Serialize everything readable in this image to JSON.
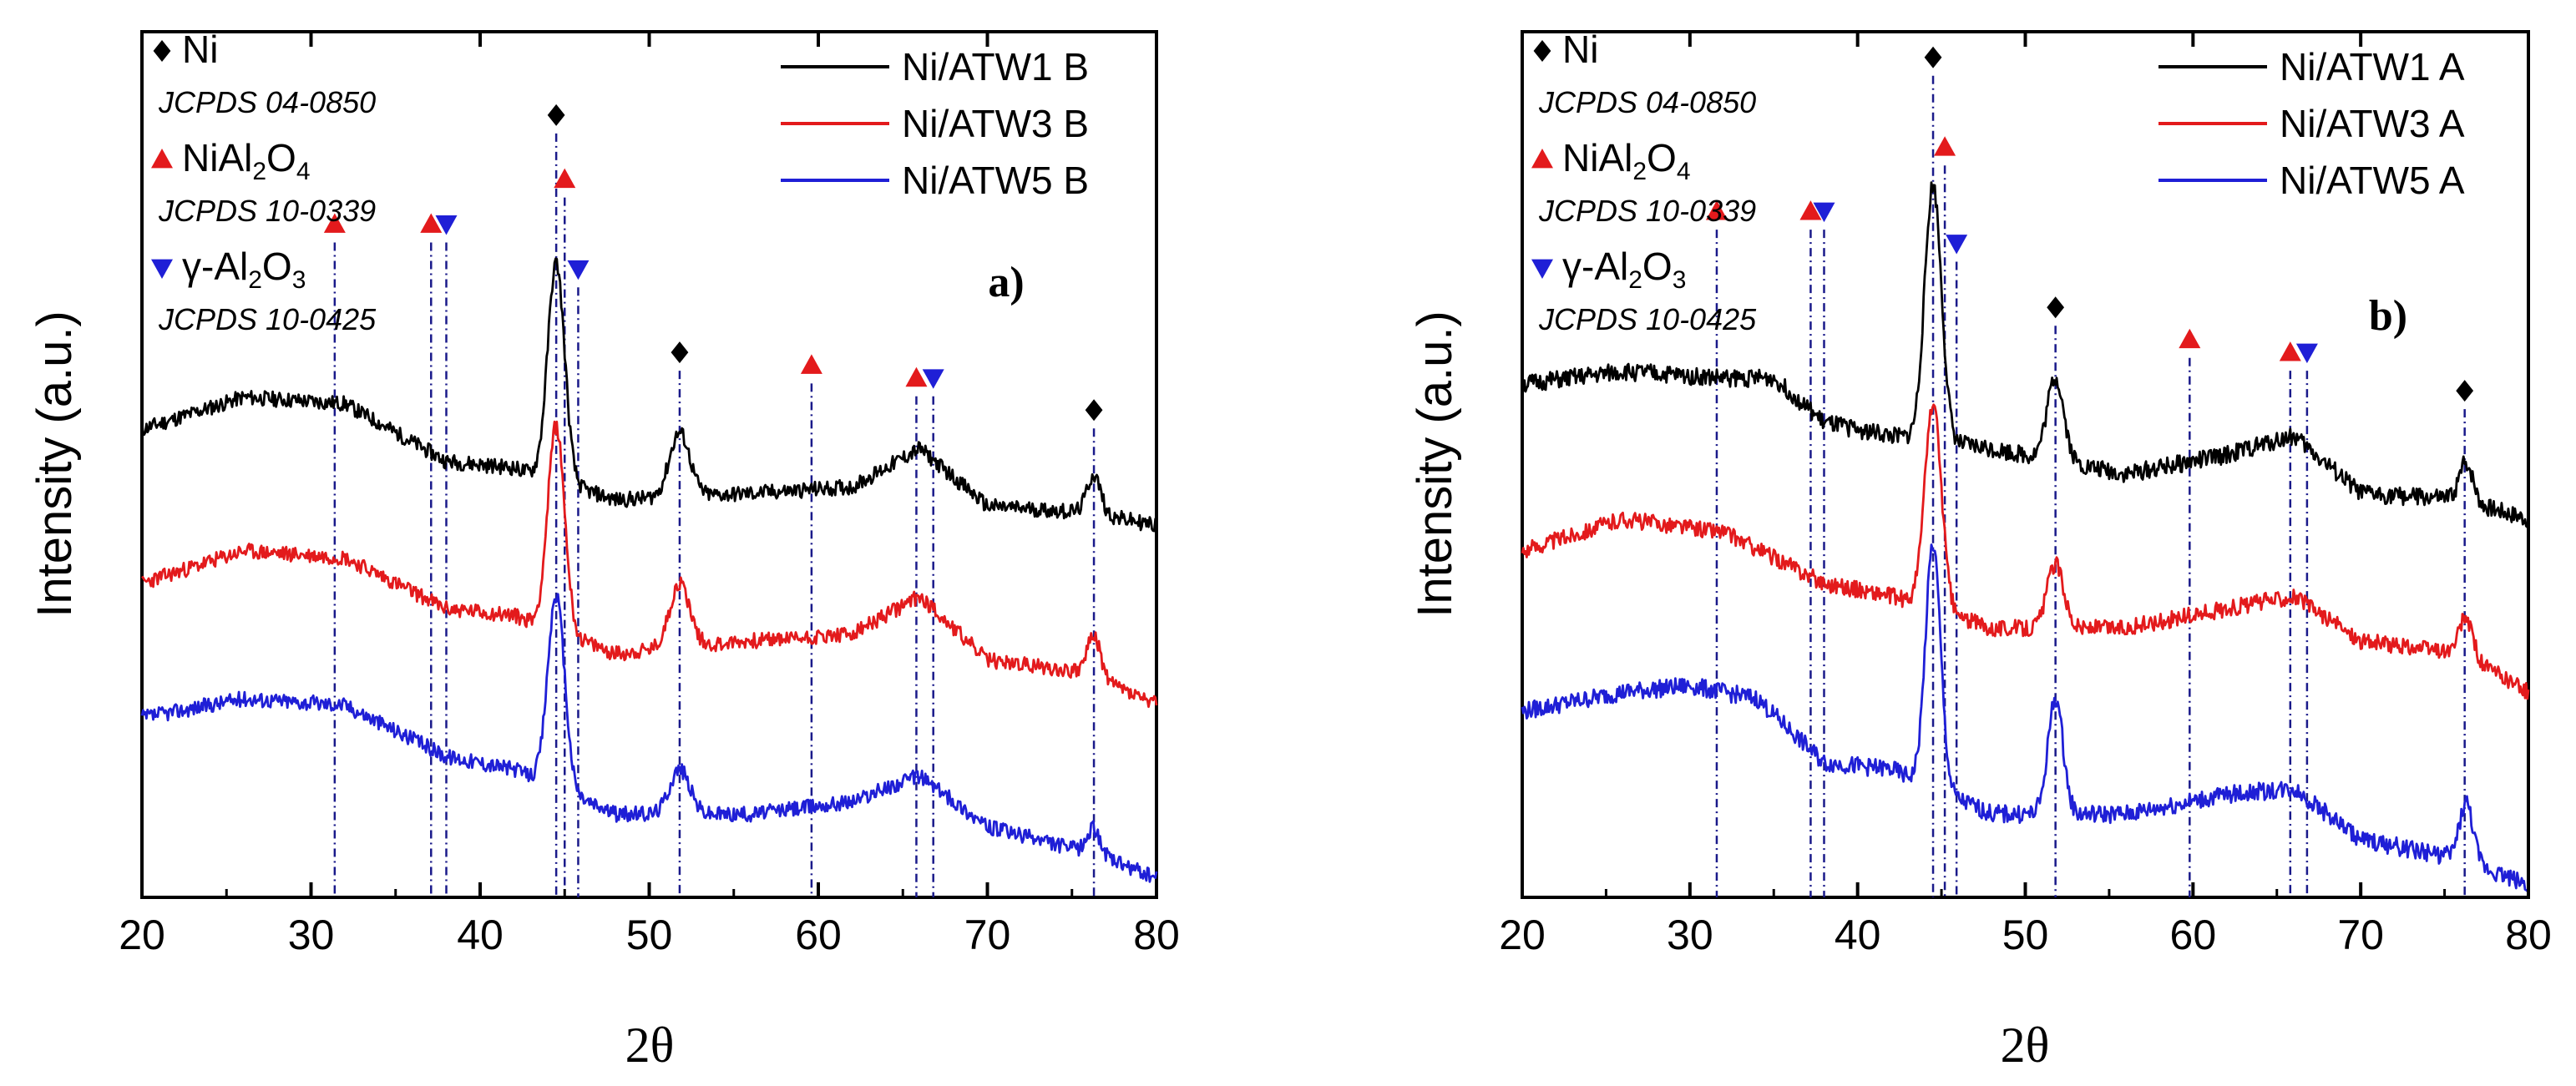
{
  "colors": {
    "black": "#000000",
    "red": "#e31a1c",
    "blue": "#1f1fd6",
    "dashed": "#1a1a8a"
  },
  "chart_data": [
    {
      "type": "line",
      "panel_label": "a)",
      "xlabel": "2θ",
      "ylabel": "Intensity (a.u.)",
      "xlim": [
        20,
        80
      ],
      "x_ticks": [
        "20",
        "30",
        "40",
        "50",
        "60",
        "70",
        "80"
      ],
      "grid": false,
      "legend": {
        "position": "top-right"
      },
      "phase_legend": [
        {
          "marker": "diamond",
          "phase": "Ni",
          "ref": "JCPDS 04-0850"
        },
        {
          "marker": "triangle-up",
          "phase_main": "NiAl",
          "sub1": "2",
          "mid": "O",
          "sub2": "4",
          "ref": "JCPDS 10-0339"
        },
        {
          "marker": "triangle-down",
          "phase_main": "γ-Al",
          "sub1": "2",
          "mid": "O",
          "sub2": "3",
          "ref": "JCPDS 10-0425"
        }
      ],
      "series": [
        {
          "name": "Ni/ATW1 B",
          "color": "black",
          "baseline": [
            [
              20,
              0.73
            ],
            [
              26,
              0.78
            ],
            [
              32,
              0.77
            ],
            [
              38,
              0.68
            ],
            [
              42,
              0.67
            ],
            [
              48,
              0.62
            ],
            [
              56,
              0.63
            ],
            [
              62,
              0.64
            ],
            [
              66,
              0.7
            ],
            [
              70,
              0.61
            ],
            [
              76,
              0.6
            ],
            [
              80,
              0.58
            ]
          ],
          "peaks": [
            [
              44.5,
              0.34,
              0.5
            ],
            [
              51.8,
              0.1,
              0.6
            ],
            [
              76.3,
              0.06,
              0.4
            ]
          ],
          "noise": 0.012,
          "seed": 11
        },
        {
          "name": "Ni/ATW3 B",
          "color": "red",
          "baseline": [
            [
              20,
              0.49
            ],
            [
              26,
              0.54
            ],
            [
              32,
              0.53
            ],
            [
              38,
              0.45
            ],
            [
              42,
              0.44
            ],
            [
              48,
              0.38
            ],
            [
              56,
              0.4
            ],
            [
              62,
              0.41
            ],
            [
              66,
              0.47
            ],
            [
              70,
              0.37
            ],
            [
              76,
              0.35
            ],
            [
              80,
              0.3
            ]
          ],
          "peaks": [
            [
              44.5,
              0.32,
              0.5
            ],
            [
              51.8,
              0.1,
              0.6
            ],
            [
              76.3,
              0.06,
              0.4
            ]
          ],
          "noise": 0.012,
          "seed": 23
        },
        {
          "name": "Ni/ATW5 B",
          "color": "blue",
          "baseline": [
            [
              20,
              0.28
            ],
            [
              26,
              0.31
            ],
            [
              32,
              0.3
            ],
            [
              38,
              0.22
            ],
            [
              42,
              0.2
            ],
            [
              48,
              0.13
            ],
            [
              56,
              0.13
            ],
            [
              62,
              0.15
            ],
            [
              66,
              0.19
            ],
            [
              70,
              0.11
            ],
            [
              76,
              0.07
            ],
            [
              80,
              0.03
            ]
          ],
          "peaks": [
            [
              44.5,
              0.3,
              0.5
            ],
            [
              51.8,
              0.07,
              0.6
            ],
            [
              76.3,
              0.04,
              0.4
            ]
          ],
          "noise": 0.012,
          "seed": 37
        }
      ],
      "markers": [
        {
          "type": "triangle-up",
          "x": 31.4,
          "level": 1.05,
          "line": true
        },
        {
          "type": "triangle-up",
          "x": 37.1,
          "level": 1.05,
          "line": true
        },
        {
          "type": "triangle-down",
          "x": 38.0,
          "level": 1.05,
          "line": true
        },
        {
          "type": "diamond",
          "x": 44.5,
          "level": 1.22,
          "line": true
        },
        {
          "type": "triangle-up",
          "x": 45.0,
          "level": 1.12,
          "line": true
        },
        {
          "type": "triangle-down",
          "x": 45.8,
          "level": 0.98,
          "line": true
        },
        {
          "type": "diamond",
          "x": 51.8,
          "level": 0.85,
          "line": true
        },
        {
          "type": "triangle-up",
          "x": 59.6,
          "level": 0.83,
          "line": true
        },
        {
          "type": "triangle-up",
          "x": 65.8,
          "level": 0.81,
          "line": true
        },
        {
          "type": "triangle-down",
          "x": 66.8,
          "level": 0.81,
          "line": true
        },
        {
          "type": "diamond",
          "x": 76.3,
          "level": 0.76,
          "line": true
        }
      ]
    },
    {
      "type": "line",
      "panel_label": "b)",
      "xlabel": "2θ",
      "ylabel": "Intensity (a.u.)",
      "xlim": [
        20,
        80
      ],
      "x_ticks": [
        "20",
        "30",
        "40",
        "50",
        "60",
        "70",
        "80"
      ],
      "grid": false,
      "legend": {
        "position": "top-right"
      },
      "phase_legend": [
        {
          "marker": "diamond",
          "phase": "Ni",
          "ref": "JCPDS 04-0850"
        },
        {
          "marker": "triangle-up",
          "phase_main": "NiAl",
          "sub1": "2",
          "mid": "O",
          "sub2": "4",
          "ref": "JCPDS 10-0339"
        },
        {
          "marker": "triangle-down",
          "phase_main": "γ-Al",
          "sub1": "2",
          "mid": "O",
          "sub2": "3",
          "ref": "JCPDS 10-0425"
        }
      ],
      "series": [
        {
          "name": "Ni/ATW1 A",
          "color": "black",
          "baseline": [
            [
              20,
              0.8
            ],
            [
              26,
              0.82
            ],
            [
              32,
              0.81
            ],
            [
              35,
              0.81
            ],
            [
              38,
              0.74
            ],
            [
              42,
              0.72
            ],
            [
              48,
              0.7
            ],
            [
              56,
              0.66
            ],
            [
              62,
              0.69
            ],
            [
              66,
              0.72
            ],
            [
              70,
              0.63
            ],
            [
              76,
              0.62
            ],
            [
              80,
              0.59
            ]
          ],
          "peaks": [
            [
              44.5,
              0.4,
              0.5
            ],
            [
              51.8,
              0.13,
              0.5
            ],
            [
              76.3,
              0.06,
              0.4
            ]
          ],
          "noise": 0.014,
          "seed": 51
        },
        {
          "name": "Ni/ATW3 A",
          "color": "red",
          "baseline": [
            [
              20,
              0.54
            ],
            [
              26,
              0.59
            ],
            [
              32,
              0.57
            ],
            [
              38,
              0.49
            ],
            [
              42,
              0.47
            ],
            [
              48,
              0.42
            ],
            [
              56,
              0.42
            ],
            [
              62,
              0.45
            ],
            [
              66,
              0.47
            ],
            [
              70,
              0.4
            ],
            [
              76,
              0.38
            ],
            [
              80,
              0.32
            ]
          ],
          "peaks": [
            [
              44.5,
              0.32,
              0.5
            ],
            [
              51.8,
              0.1,
              0.5
            ],
            [
              76.3,
              0.06,
              0.4
            ]
          ],
          "noise": 0.013,
          "seed": 63
        },
        {
          "name": "Ni/ATW5 A",
          "color": "blue",
          "baseline": [
            [
              20,
              0.29
            ],
            [
              26,
              0.32
            ],
            [
              30,
              0.33
            ],
            [
              34,
              0.31
            ],
            [
              38,
              0.21
            ],
            [
              42,
              0.2
            ],
            [
              48,
              0.13
            ],
            [
              56,
              0.13
            ],
            [
              62,
              0.16
            ],
            [
              66,
              0.17
            ],
            [
              70,
              0.09
            ],
            [
              76,
              0.06
            ],
            [
              80,
              0.02
            ]
          ],
          "peaks": [
            [
              44.5,
              0.38,
              0.45
            ],
            [
              51.8,
              0.18,
              0.45
            ],
            [
              76.3,
              0.09,
              0.4
            ]
          ],
          "noise": 0.014,
          "seed": 79
        }
      ],
      "markers": [
        {
          "type": "triangle-up",
          "x": 31.6,
          "level": 1.07,
          "line": true
        },
        {
          "type": "triangle-up",
          "x": 37.2,
          "level": 1.07,
          "line": true
        },
        {
          "type": "triangle-down",
          "x": 38.0,
          "level": 1.07,
          "line": true
        },
        {
          "type": "diamond",
          "x": 44.5,
          "level": 1.31,
          "line": true
        },
        {
          "type": "triangle-up",
          "x": 45.2,
          "level": 1.17,
          "line": true
        },
        {
          "type": "triangle-down",
          "x": 45.9,
          "level": 1.02,
          "line": true
        },
        {
          "type": "diamond",
          "x": 51.8,
          "level": 0.92,
          "line": true
        },
        {
          "type": "triangle-up",
          "x": 59.8,
          "level": 0.87,
          "line": true
        },
        {
          "type": "triangle-up",
          "x": 65.8,
          "level": 0.85,
          "line": true
        },
        {
          "type": "triangle-down",
          "x": 66.8,
          "level": 0.85,
          "line": true
        },
        {
          "type": "diamond",
          "x": 76.2,
          "level": 0.79,
          "line": true
        }
      ]
    }
  ]
}
